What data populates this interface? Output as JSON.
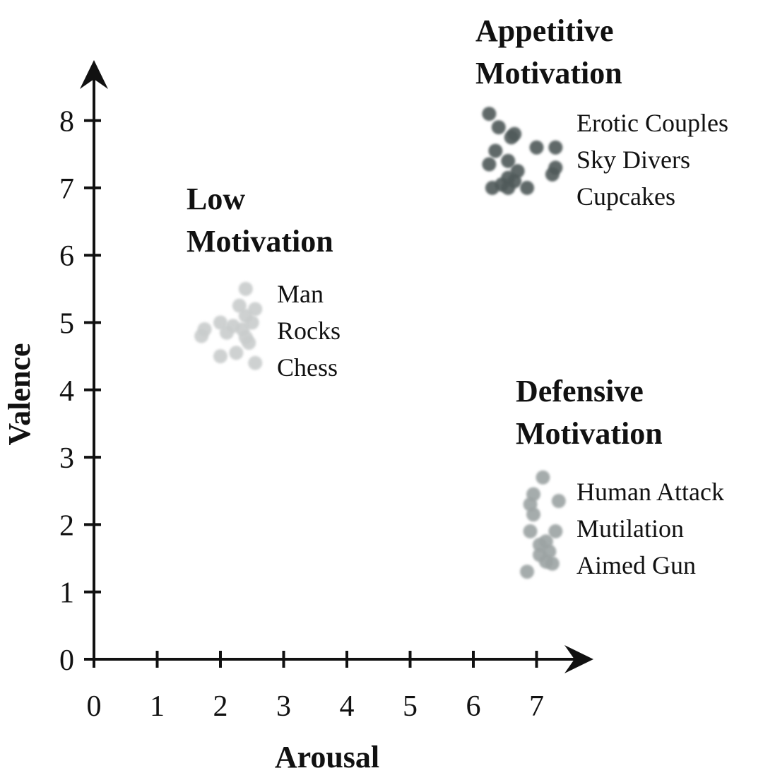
{
  "chart_data": {
    "type": "scatter",
    "xlabel": "Arousal",
    "ylabel": "Valence",
    "xlim": [
      0,
      7.7
    ],
    "ylim": [
      0,
      8.7
    ],
    "xticks": [
      0,
      1,
      2,
      3,
      4,
      5,
      6,
      7
    ],
    "yticks": [
      0,
      1,
      2,
      3,
      4,
      5,
      6,
      7,
      8
    ],
    "grid": false,
    "groups": [
      {
        "title_lines": [
          "Appetitive",
          "Motivation"
        ],
        "labels": [
          "Erotic Couples",
          "Sky Divers",
          "Cupcakes"
        ],
        "color": "#4f5a5a",
        "points": [
          {
            "x": 6.25,
            "y": 8.1
          },
          {
            "x": 6.4,
            "y": 7.9
          },
          {
            "x": 6.6,
            "y": 7.75
          },
          {
            "x": 6.65,
            "y": 7.8
          },
          {
            "x": 7.0,
            "y": 7.6
          },
          {
            "x": 7.3,
            "y": 7.6
          },
          {
            "x": 6.35,
            "y": 7.55
          },
          {
            "x": 6.55,
            "y": 7.4
          },
          {
            "x": 6.25,
            "y": 7.35
          },
          {
            "x": 7.3,
            "y": 7.3
          },
          {
            "x": 7.25,
            "y": 7.2
          },
          {
            "x": 6.7,
            "y": 7.25
          },
          {
            "x": 6.55,
            "y": 7.15
          },
          {
            "x": 6.65,
            "y": 7.1
          },
          {
            "x": 6.45,
            "y": 7.05
          },
          {
            "x": 6.3,
            "y": 7.0
          },
          {
            "x": 6.55,
            "y": 7.0
          },
          {
            "x": 6.85,
            "y": 7.0
          }
        ]
      },
      {
        "title_lines": [
          "Low",
          "Motivation"
        ],
        "labels": [
          "Man",
          "Rocks",
          "Chess"
        ],
        "color": "#c9cccc",
        "points": [
          {
            "x": 2.4,
            "y": 5.5
          },
          {
            "x": 2.3,
            "y": 5.25
          },
          {
            "x": 2.55,
            "y": 5.2
          },
          {
            "x": 2.4,
            "y": 5.1
          },
          {
            "x": 2.0,
            "y": 5.0
          },
          {
            "x": 2.2,
            "y": 4.95
          },
          {
            "x": 2.5,
            "y": 5.0
          },
          {
            "x": 2.35,
            "y": 4.9
          },
          {
            "x": 1.75,
            "y": 4.9
          },
          {
            "x": 2.1,
            "y": 4.85
          },
          {
            "x": 1.7,
            "y": 4.8
          },
          {
            "x": 2.4,
            "y": 4.78
          },
          {
            "x": 2.45,
            "y": 4.7
          },
          {
            "x": 2.0,
            "y": 4.5
          },
          {
            "x": 2.25,
            "y": 4.55
          },
          {
            "x": 2.55,
            "y": 4.4
          }
        ]
      },
      {
        "title_lines": [
          "Defensive",
          "Motivation"
        ],
        "labels": [
          "Human Attack",
          "Mutilation",
          "Aimed Gun"
        ],
        "color": "#9ba3a3",
        "points": [
          {
            "x": 7.1,
            "y": 2.7
          },
          {
            "x": 6.95,
            "y": 2.45
          },
          {
            "x": 7.35,
            "y": 2.35
          },
          {
            "x": 6.9,
            "y": 2.3
          },
          {
            "x": 6.95,
            "y": 2.15
          },
          {
            "x": 6.9,
            "y": 1.9
          },
          {
            "x": 7.3,
            "y": 1.9
          },
          {
            "x": 7.15,
            "y": 1.75
          },
          {
            "x": 7.05,
            "y": 1.7
          },
          {
            "x": 7.2,
            "y": 1.6
          },
          {
            "x": 7.05,
            "y": 1.55
          },
          {
            "x": 7.15,
            "y": 1.45
          },
          {
            "x": 7.25,
            "y": 1.42
          },
          {
            "x": 6.85,
            "y": 1.3
          }
        ]
      }
    ]
  }
}
